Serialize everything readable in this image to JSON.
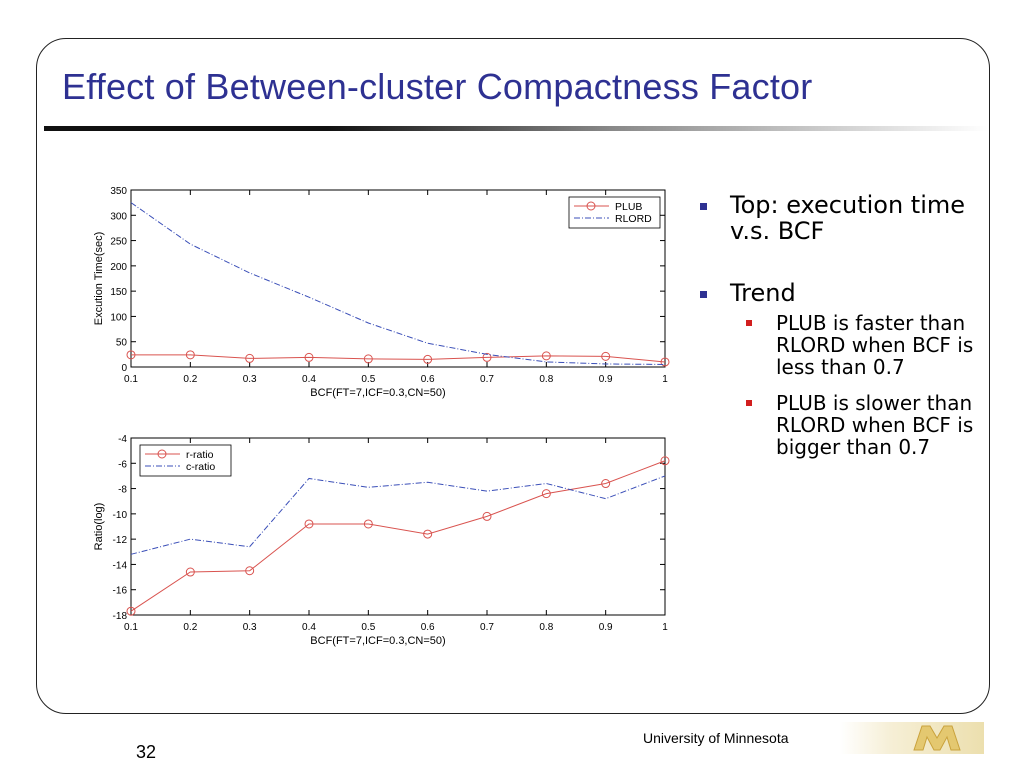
{
  "slide": {
    "title": "Effect of Between-cluster Compactness Factor",
    "page_number": "32",
    "footer": "University of Minnesota",
    "bullets": [
      {
        "text": "Top: execution time v.s. BCF"
      },
      {
        "text": "Trend",
        "subitems": [
          "PLUB is faster than RLORD when BCF is less than 0.7",
          "PLUB is slower than RLORD when BCF is bigger than 0.7"
        ]
      }
    ]
  },
  "chart_data": [
    {
      "type": "line",
      "xlabel": "BCF(FT=7,ICF=0.3,CN=50)",
      "ylabel": "Excution Time(sec)",
      "x": [
        0.1,
        0.2,
        0.3,
        0.4,
        0.5,
        0.6,
        0.7,
        0.8,
        0.9,
        1
      ],
      "xticks": [
        "0.1",
        "0.2",
        "0.3",
        "0.4",
        "0.5",
        "0.6",
        "0.7",
        "0.8",
        "0.9",
        "1"
      ],
      "yticks": [
        "0",
        "50",
        "100",
        "150",
        "200",
        "250",
        "300",
        "350"
      ],
      "xlim": [
        0.1,
        1
      ],
      "ylim": [
        0,
        350
      ],
      "grid": false,
      "legend_position": "top-right",
      "series": [
        {
          "name": "PLUB",
          "color": "#d9534f",
          "style": "solid",
          "marker": "circle",
          "values": [
            24,
            24,
            17,
            19,
            16,
            15,
            19,
            22,
            21,
            10
          ]
        },
        {
          "name": "RLORD",
          "color": "#3b4fb8",
          "style": "dashdot",
          "marker": "none",
          "values": [
            325,
            243,
            186,
            138,
            87,
            47,
            25,
            10,
            6,
            5
          ]
        }
      ]
    },
    {
      "type": "line",
      "xlabel": "BCF(FT=7,ICF=0.3,CN=50)",
      "ylabel": "Ratio(log)",
      "x": [
        0.1,
        0.2,
        0.3,
        0.4,
        0.5,
        0.6,
        0.7,
        0.8,
        0.9,
        1
      ],
      "xticks": [
        "0.1",
        "0.2",
        "0.3",
        "0.4",
        "0.5",
        "0.6",
        "0.7",
        "0.8",
        "0.9",
        "1"
      ],
      "yticks": [
        "-18",
        "-16",
        "-14",
        "-12",
        "-10",
        "-8",
        "-6",
        "-4"
      ],
      "xlim": [
        0.1,
        1
      ],
      "ylim": [
        -18,
        -4
      ],
      "grid": false,
      "legend_position": "top-left",
      "series": [
        {
          "name": "r-ratio",
          "color": "#d9534f",
          "style": "solid",
          "marker": "circle",
          "values": [
            -17.7,
            -14.6,
            -14.5,
            -10.8,
            -10.8,
            -11.6,
            -10.2,
            -8.4,
            -7.6,
            -5.8
          ]
        },
        {
          "name": "c-ratio",
          "color": "#3b4fb8",
          "style": "dashdot",
          "marker": "none",
          "values": [
            -13.2,
            -12.0,
            -12.6,
            -7.2,
            -7.9,
            -7.5,
            -8.2,
            -7.6,
            -8.8,
            -7.0
          ]
        }
      ]
    }
  ]
}
